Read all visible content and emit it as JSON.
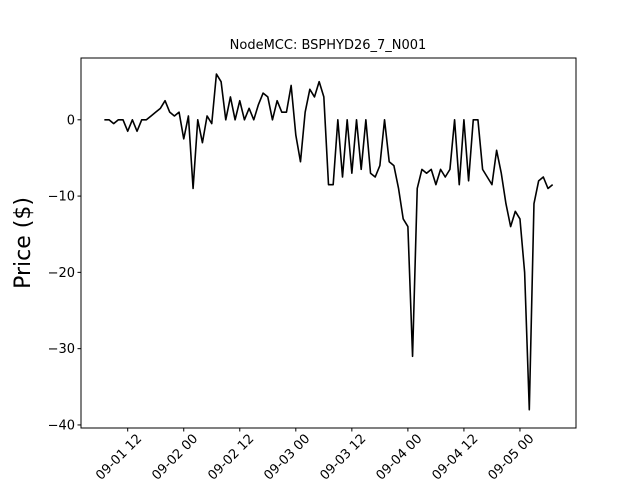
{
  "chart_data": {
    "type": "line",
    "title": "NodeMCC: BSPHYD26_7_N001",
    "y_label": "Price ($)",
    "x": [
      "09-01 07",
      "09-01 08",
      "09-01 09",
      "09-01 10",
      "09-01 11",
      "09-01 12",
      "09-01 13",
      "09-01 14",
      "09-01 15",
      "09-01 16",
      "09-01 17",
      "09-01 18",
      "09-01 19",
      "09-01 20",
      "09-01 21",
      "09-01 22",
      "09-01 23",
      "09-02 00",
      "09-02 01",
      "09-02 02",
      "09-02 03",
      "09-02 04",
      "09-02 05",
      "09-02 06",
      "09-02 07",
      "09-02 08",
      "09-02 09",
      "09-02 10",
      "09-02 11",
      "09-02 12",
      "09-02 13",
      "09-02 14",
      "09-02 15",
      "09-02 16",
      "09-02 17",
      "09-02 18",
      "09-02 19",
      "09-02 20",
      "09-02 21",
      "09-02 22",
      "09-02 23",
      "09-03 00",
      "09-03 01",
      "09-03 02",
      "09-03 03",
      "09-03 04",
      "09-03 05",
      "09-03 06",
      "09-03 07",
      "09-03 08",
      "09-03 09",
      "09-03 10",
      "09-03 11",
      "09-03 12",
      "09-03 13",
      "09-03 14",
      "09-03 15",
      "09-03 16",
      "09-03 17",
      "09-03 18",
      "09-03 19",
      "09-03 20",
      "09-03 21",
      "09-03 22",
      "09-03 23",
      "09-04 00",
      "09-04 01",
      "09-04 02",
      "09-04 03",
      "09-04 04",
      "09-04 05",
      "09-04 06",
      "09-04 07",
      "09-04 08",
      "09-04 09",
      "09-04 10",
      "09-04 11",
      "09-04 12",
      "09-04 13",
      "09-04 14",
      "09-04 15",
      "09-04 16",
      "09-04 17",
      "09-04 18",
      "09-04 19",
      "09-04 20",
      "09-04 21",
      "09-04 22",
      "09-04 23",
      "09-05 00",
      "09-05 01",
      "09-05 02",
      "09-05 03",
      "09-05 04",
      "09-05 05",
      "09-05 06",
      "09-05 07"
    ],
    "series": [
      {
        "color": "#000000",
        "values": [
          0,
          0,
          -0.5,
          0,
          0,
          -1.5,
          0,
          -1.5,
          0,
          0,
          0.5,
          1,
          1.5,
          2.5,
          1,
          0.5,
          1,
          -2.5,
          0.5,
          -9,
          0,
          -3,
          0.5,
          -0.5,
          6,
          5,
          0,
          3,
          0,
          2.5,
          0,
          1.5,
          0,
          2,
          3.5,
          3,
          0,
          2.5,
          1,
          1,
          4.5,
          -2,
          -5.5,
          1,
          4,
          3,
          5,
          3,
          -8.5,
          -8.5,
          0,
          -7.5,
          0,
          -7,
          0,
          -6.5,
          0,
          -7,
          -7.5,
          -6,
          0,
          -5.5,
          -6,
          -9,
          -13,
          -14,
          -31,
          -9,
          -6.5,
          -7,
          -6.5,
          -8.5,
          -6.5,
          -7.5,
          -6.5,
          0,
          -8.5,
          0,
          -8,
          0,
          0,
          -6.5,
          -7.5,
          -8.5,
          -4,
          -7,
          -11,
          -14,
          -12,
          -13,
          -20,
          -38,
          -11,
          -8,
          -7.5,
          -9,
          -8.5
        ]
      }
    ],
    "xlim": [
      "09-01 02",
      "09-05 12"
    ],
    "xticks": [
      "09-01 12",
      "09-02 00",
      "09-02 12",
      "09-03 00",
      "09-03 12",
      "09-04 00",
      "09-04 12",
      "09-05 00"
    ],
    "ylim": [
      -40.4,
      8.1
    ],
    "yticks": [
      {
        "value": -40,
        "label": "−40"
      },
      {
        "value": -30,
        "label": "−30"
      },
      {
        "value": -20,
        "label": "−20"
      },
      {
        "value": -10,
        "label": "−10"
      },
      0
    ]
  }
}
